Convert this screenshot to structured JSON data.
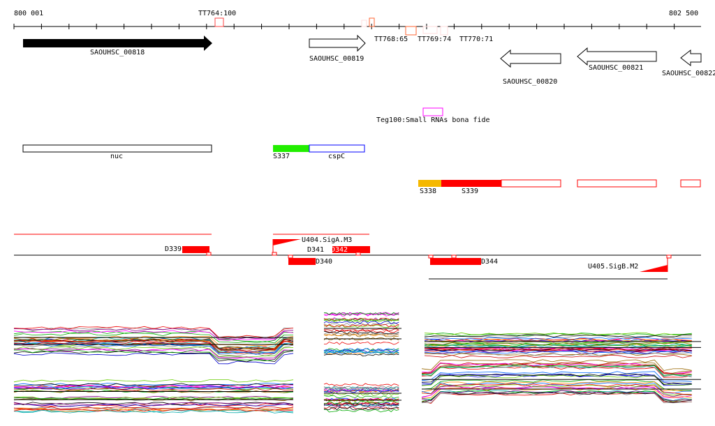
{
  "axis": {
    "start": "800 001",
    "end": "802 500"
  },
  "terminators": [
    "TT764:100",
    "TT768:65",
    "TT769:74",
    "TT770:71"
  ],
  "genes": [
    {
      "label": "SAOUHSC_00818",
      "strand": "+",
      "filled": true
    },
    {
      "label": "SAOUHSC_00819",
      "strand": "+"
    },
    {
      "label": "SAOUHSC_00820",
      "strand": "-"
    },
    {
      "label": "SAOUHSC_00821",
      "strand": "-"
    },
    {
      "label": "SAOUHSC_00822",
      "strand": "-"
    }
  ],
  "srna": {
    "label": "Teg100:Small RNAs bona fide"
  },
  "features": {
    "nuc": "nuc",
    "s337": "S337",
    "cspC": "cspC",
    "s338": "S338",
    "s339": "S339"
  },
  "segments": {
    "d339": "D339",
    "u404": "U404.SigA.M3",
    "d341": "D341",
    "d342": "D342",
    "d340": "D340",
    "d344": "D344",
    "u405": "U405.SigB.M2"
  },
  "colors": {
    "green": "#22ee00",
    "orange": "#f5b800",
    "red": "#ff0000",
    "magenta": "#ff00ff"
  }
}
